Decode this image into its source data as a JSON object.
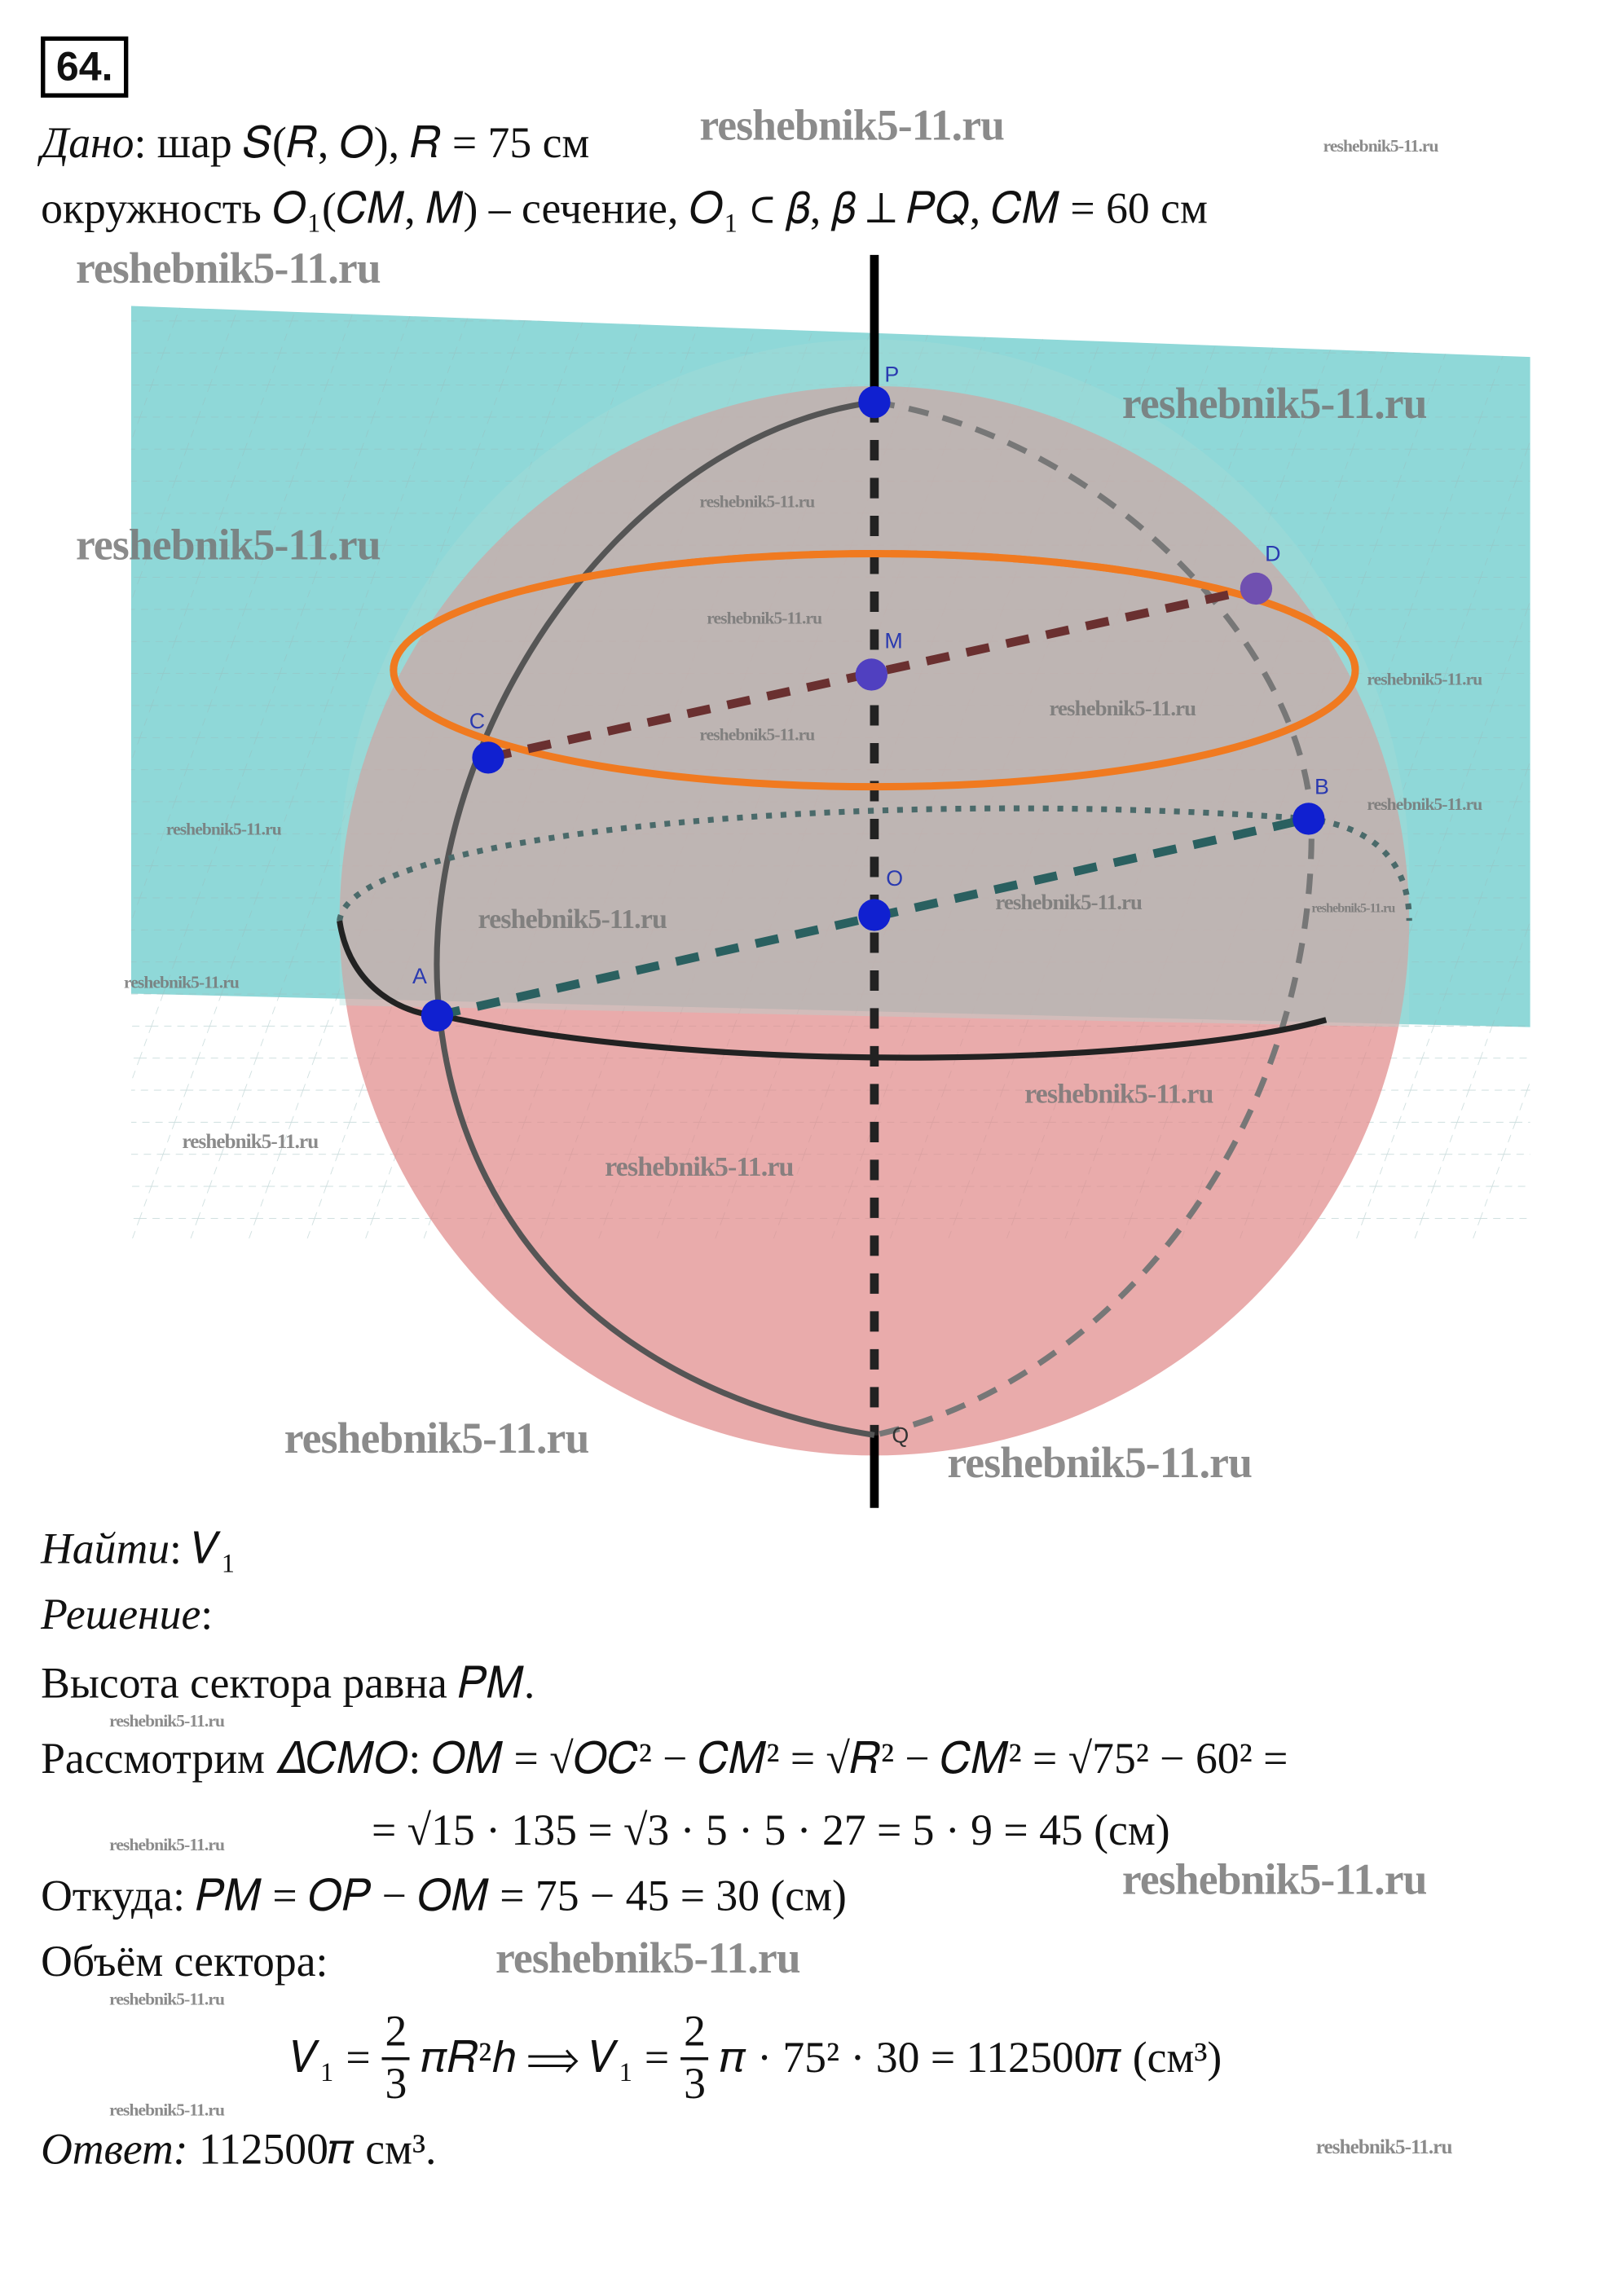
{
  "problem_number": "64.",
  "given": {
    "label": "Дано",
    "line1": ": шар 𝑆(𝑅, 𝑂), 𝑅 = 75 см",
    "line2": "окружность 𝑂₁(𝐶𝑀, 𝑀) – сечение, 𝑂₁ ⊂ 𝛽, 𝛽 ⊥ 𝑃𝑄,  𝐶𝑀 = 60 см"
  },
  "figure": {
    "point_labels": {
      "P": "P",
      "D": "D",
      "M": "M",
      "C": "C",
      "B": "B",
      "O": "O",
      "A": "A",
      "Q": "Q"
    },
    "colors": {
      "plane": "#8fd8d8",
      "sphere": "#e08a8a",
      "section_circle": "#f07a20",
      "points": "#1020d0",
      "axis": "#000000"
    }
  },
  "find": {
    "label": "Найти",
    "value": ": 𝑉₁"
  },
  "solution": {
    "label": "Решение",
    "suffix": ":",
    "line1": "Высота сектора равна 𝑃𝑀.",
    "line2": "Рассмотрим 𝛥𝐶𝑀𝑂: 𝑂𝑀 = √𝑂𝐶² − 𝐶𝑀² = √𝑅² − 𝐶𝑀² = √75² − 60² =",
    "line3": "= √15 · 135 = √3 · 5 · 5 · 27 = 5 · 9 = 45 (см)",
    "line4": "Откуда: 𝑃𝑀 = 𝑂𝑃 − 𝑂𝑀 = 75 − 45 = 30 (см)",
    "line5": "Объём сектора:",
    "formula": {
      "lhs": "𝑉₁ =",
      "frac_num": "2",
      "frac_den": "3",
      "mid": "𝜋𝑅²ℎ  ⟹ 𝑉₁ =",
      "rhs": "𝜋 · 75² · 30 = 112500𝜋 (см³)"
    }
  },
  "answer": {
    "label": "Ответ:",
    "value": " 112500𝜋 см³."
  },
  "watermark": "reshebnik5-11.ru"
}
